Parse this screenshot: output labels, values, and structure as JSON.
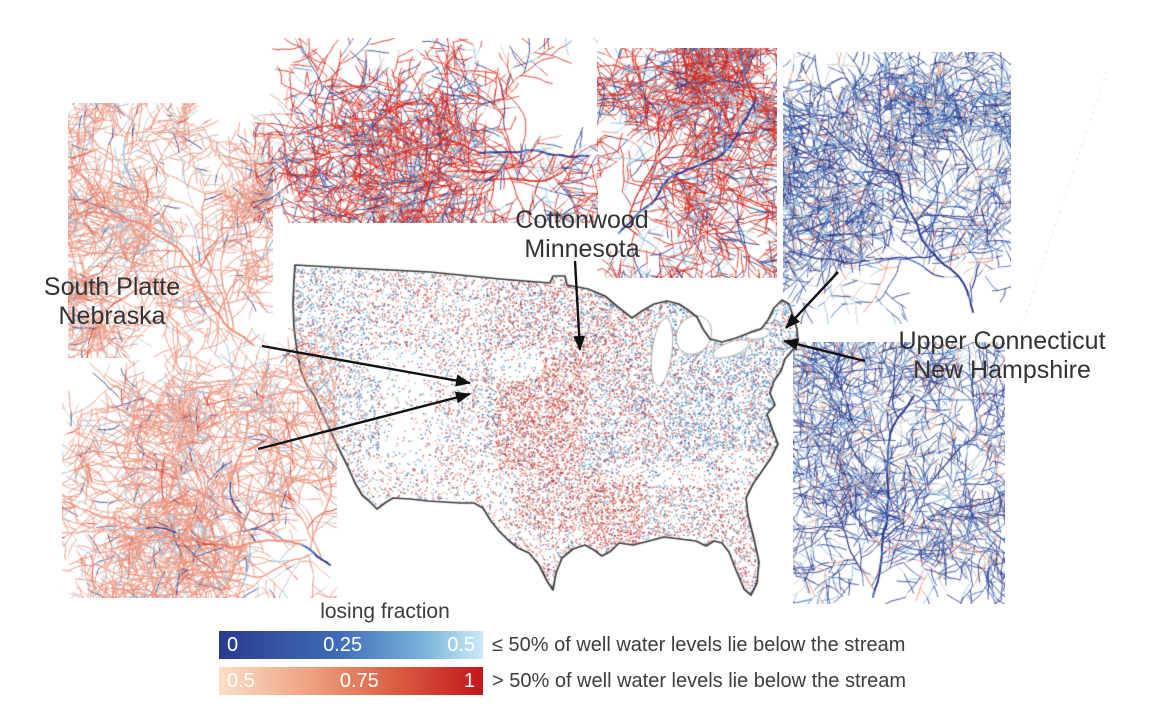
{
  "annotations": {
    "south_platte": {
      "line1": "South Platte",
      "line2": "Nebraska"
    },
    "cottonwood": {
      "line1": "Cottonwood",
      "line2": "Minnesota"
    },
    "upper_connecticut": {
      "line1": "Upper Connecticut",
      "line2": "New Hampshire"
    }
  },
  "legend": {
    "title": "losing fraction",
    "bar_low": {
      "ticks": [
        "0",
        "0.25",
        "0.5"
      ],
      "description": "≤ 50% of well water levels lie below the stream",
      "gradient": [
        "#2b3a8f",
        "#3e6db6",
        "#79b5dc",
        "#cdeaf6"
      ]
    },
    "bar_high": {
      "ticks": [
        "0.5",
        "0.75",
        "1"
      ],
      "description": "> 50% of well water levels lie below the stream",
      "gradient": [
        "#fbdfc8",
        "#eea07f",
        "#da5b40",
        "#c2161c"
      ]
    }
  },
  "colors": {
    "text": "#3d3d3d",
    "outline": "#3a3a3a",
    "arrow": "#111111",
    "losing_red": "#d7281e",
    "salmon": "#ee8f77",
    "gaining_navy": "#2b3a8c",
    "medium_blue": "#3f6fbf",
    "light_blue": "#8fc3e6",
    "neutral_gray": "#c9c9c9",
    "map_reds": [
      "#b2182b",
      "#d6604d",
      "#e58368"
    ],
    "map_blues": [
      "#2166ac",
      "#4393c3",
      "#7aa9d4"
    ],
    "map_purple": "#7a6fae"
  }
}
